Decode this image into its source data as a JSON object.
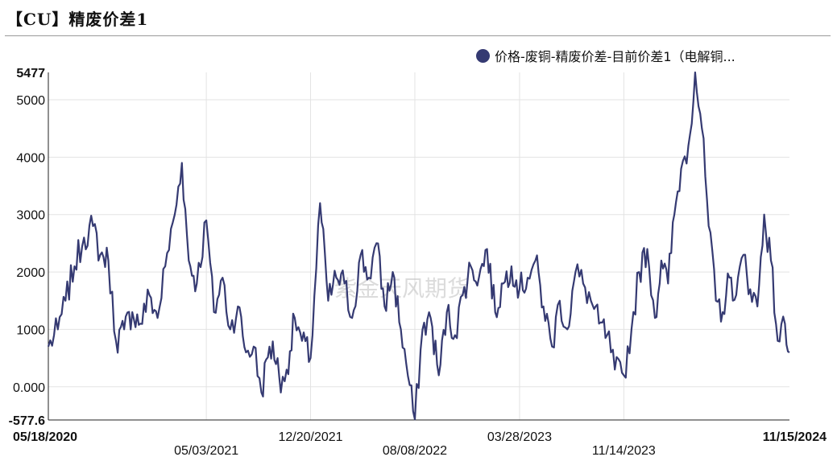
{
  "header": {
    "title": "【CU】精废价差1"
  },
  "watermark": "紫金天风期货",
  "chart_data": {
    "type": "line",
    "title": "【CU】精废价差1",
    "legend_position": "top-right",
    "series": [
      {
        "name": "价格-废铜-精废价差-目前价差1（电解铜...",
        "color": "#353a72",
        "dates": [
          "2020-05-18",
          "2020-06-08",
          "2020-06-25",
          "2020-07-15",
          "2020-08-05",
          "2020-08-25",
          "2020-09-10",
          "2020-09-28",
          "2020-10-15",
          "2020-11-02",
          "2020-11-20",
          "2020-12-08",
          "2020-12-28",
          "2021-01-15",
          "2021-02-01",
          "2021-02-22",
          "2021-03-10",
          "2021-03-25",
          "2021-04-12",
          "2021-05-03",
          "2021-05-20",
          "2021-06-08",
          "2021-06-25",
          "2021-07-12",
          "2021-07-30",
          "2021-08-16",
          "2021-09-02",
          "2021-09-20",
          "2021-10-08",
          "2021-10-15",
          "2021-10-28",
          "2021-11-15",
          "2021-12-01",
          "2021-12-20",
          "2022-01-10",
          "2022-01-28",
          "2022-02-15",
          "2022-03-05",
          "2022-03-22",
          "2022-04-10",
          "2022-04-28",
          "2022-05-15",
          "2022-06-02",
          "2022-06-20",
          "2022-07-08",
          "2022-07-20",
          "2022-08-08",
          "2022-08-25",
          "2022-09-12",
          "2022-09-30",
          "2022-10-18",
          "2022-11-05",
          "2022-11-22",
          "2022-12-10",
          "2022-12-28",
          "2023-01-15",
          "2023-02-02",
          "2023-02-20",
          "2023-03-10",
          "2023-03-28",
          "2023-04-15",
          "2023-05-02",
          "2023-05-20",
          "2023-06-08",
          "2023-06-25",
          "2023-07-12",
          "2023-07-30",
          "2023-08-16",
          "2023-09-02",
          "2023-09-20",
          "2023-10-08",
          "2023-10-25",
          "2023-11-14",
          "2023-12-01",
          "2023-12-18",
          "2024-01-05",
          "2024-01-22",
          "2024-02-05",
          "2024-02-20",
          "2024-03-05",
          "2024-03-20",
          "2024-04-05",
          "2024-04-20",
          "2024-05-05",
          "2024-05-20",
          "2024-06-05",
          "2024-06-20",
          "2024-07-05",
          "2024-07-20",
          "2024-08-05",
          "2024-08-20",
          "2024-09-05",
          "2024-09-20",
          "2024-10-05",
          "2024-10-20",
          "2024-11-05",
          "2024-11-15"
        ],
        "values": [
          700,
          1000,
          1500,
          2100,
          2600,
          2800,
          2300,
          2200,
          800,
          1000,
          1300,
          1100,
          1600,
          1200,
          2100,
          3000,
          3900,
          2200,
          1800,
          2900,
          1300,
          1900,
          1000,
          1400,
          600,
          700,
          -100,
          700,
          500,
          -100,
          300,
          1200,
          800,
          500,
          3200,
          1500,
          1900,
          1800,
          1200,
          2300,
          1900,
          2500,
          1400,
          2000,
          1000,
          400,
          -600,
          1000,
          1200,
          200,
          1300,
          900,
          1600,
          2100,
          1900,
          2400,
          1300,
          1800,
          2100,
          1700,
          1900,
          2200,
          1400,
          700,
          1500,
          1000,
          2000,
          1800,
          1500,
          1100,
          900,
          300,
          200,
          1000,
          2000,
          2400,
          1200,
          2200,
          1800,
          3000,
          3800,
          4200,
          5477,
          4500,
          2800,
          1500,
          1300,
          1900,
          1600,
          2300,
          1700,
          1400,
          3000,
          2200,
          800,
          1100,
          600
        ]
      }
    ],
    "x_tick_labels": [
      "05/18/2020",
      "05/03/2021",
      "12/20/2021",
      "08/08/2022",
      "03/28/2023",
      "11/14/2023",
      "11/15/2024"
    ],
    "y_tick_labels": [
      "5477",
      "5000",
      "4000",
      "3000",
      "2000",
      "1000",
      "0.000",
      "-577.6"
    ],
    "ylim": [
      -577.6,
      5477
    ],
    "y_ticks": [
      0,
      1000,
      2000,
      3000,
      4000,
      5000
    ],
    "grid": true
  }
}
